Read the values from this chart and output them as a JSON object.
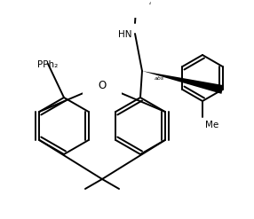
{
  "bg_color": "#ffffff",
  "line_color": "#000000",
  "line_width": 1.4,
  "font_size": 6.5,
  "figsize": [
    2.86,
    2.47
  ],
  "dpi": 100,
  "xlim": [
    0,
    286
  ],
  "ylim": [
    0,
    247
  ]
}
